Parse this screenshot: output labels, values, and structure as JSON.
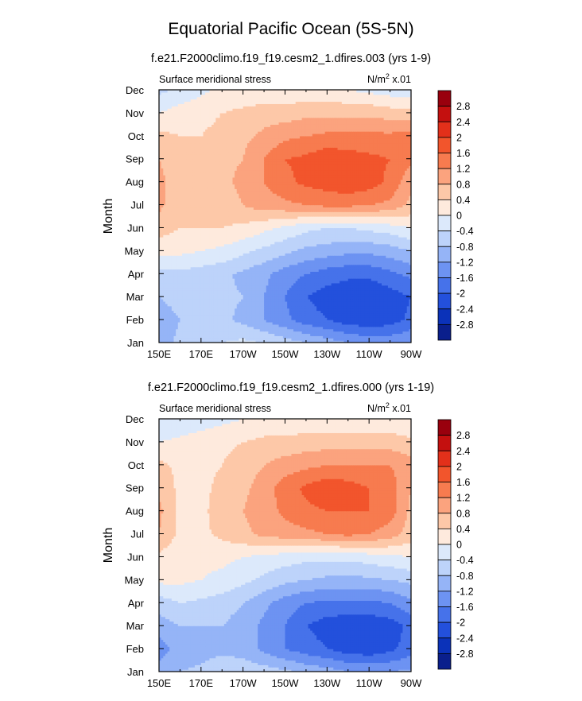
{
  "figure": {
    "title": "Equatorial Pacific Ocean (5S-5N)"
  },
  "colorbar": {
    "labels": [
      "2.8",
      "2.4",
      "2",
      "1.6",
      "1.2",
      "0.8",
      "0.4",
      "0",
      "-0.4",
      "-0.8",
      "-1.2",
      "-1.6",
      "-2",
      "-2.4",
      "-2.8"
    ],
    "colors": [
      "#99000d",
      "#c4100f",
      "#e3301a",
      "#f2552c",
      "#f77b4f",
      "#fba37e",
      "#fdc8a8",
      "#feeadd",
      "#dce9fb",
      "#bdd3fa",
      "#95b4f7",
      "#6d93f2",
      "#4672ea",
      "#2350dc",
      "#0b32b9",
      "#0a1f8c"
    ]
  },
  "chart_data": [
    {
      "type": "contour",
      "title": "f.e21.F2000climo.f19_f19.cesm2_1.dfires.003 (yrs 1-9)",
      "left_label": "Surface meridional stress",
      "right_label_prefix": "N/m",
      "right_label_sup": "2",
      "right_label_suffix": " x.01",
      "ylabel": "Month",
      "x_ticks": [
        "150E",
        "170E",
        "170W",
        "150W",
        "130W",
        "110W",
        "90W"
      ],
      "y_ticks": [
        "Jan",
        "Feb",
        "Mar",
        "Apr",
        "May",
        "Jun",
        "Jul",
        "Aug",
        "Sep",
        "Oct",
        "Nov",
        "Dec"
      ],
      "xlim": [
        150,
        270
      ],
      "ylim": [
        1,
        12
      ],
      "levels": [
        -2.8,
        -2.4,
        -2.0,
        -1.6,
        -1.2,
        -0.8,
        -0.4,
        0.0,
        0.4,
        0.8,
        1.2,
        1.6,
        2.0,
        2.4,
        2.8
      ],
      "x": [
        150,
        160,
        170,
        180,
        190,
        200,
        210,
        220,
        230,
        240,
        250,
        260,
        270
      ],
      "z": [
        [
          -1.0,
          -0.7,
          -0.6,
          -0.4,
          -0.3,
          -0.4,
          -0.6,
          -0.8,
          -1.0,
          -1.2,
          -1.3,
          -1.3,
          -1.2
        ],
        [
          -1.1,
          -0.8,
          -0.7,
          -0.7,
          -0.9,
          -1.2,
          -1.5,
          -1.8,
          -2.0,
          -2.2,
          -2.3,
          -2.2,
          -1.9
        ],
        [
          -0.8,
          -0.6,
          -0.7,
          -0.7,
          -0.8,
          -1.2,
          -1.6,
          -2.0,
          -2.2,
          -2.3,
          -2.4,
          -2.2,
          -2.0
        ],
        [
          -0.5,
          -0.5,
          -0.6,
          -0.7,
          -0.9,
          -1.1,
          -1.4,
          -1.6,
          -1.8,
          -1.9,
          -1.9,
          -1.7,
          -1.5
        ],
        [
          0.1,
          0.1,
          0.0,
          -0.1,
          -0.3,
          -0.5,
          -0.7,
          -0.9,
          -1.0,
          -1.1,
          -1.1,
          -1.0,
          -0.8
        ],
        [
          0.6,
          0.4,
          0.4,
          0.4,
          0.3,
          0.1,
          -0.1,
          -0.3,
          -0.4,
          -0.4,
          -0.3,
          -0.2,
          0.0
        ],
        [
          0.9,
          0.5,
          0.5,
          0.6,
          0.8,
          1.0,
          1.1,
          1.2,
          1.3,
          1.3,
          1.2,
          1.1,
          0.7
        ],
        [
          0.9,
          0.6,
          0.6,
          0.7,
          0.9,
          1.2,
          1.5,
          1.7,
          1.8,
          1.9,
          1.8,
          1.5,
          0.9
        ],
        [
          0.8,
          0.6,
          0.6,
          0.7,
          0.8,
          1.2,
          1.6,
          1.7,
          1.9,
          1.8,
          1.7,
          1.6,
          1.3
        ],
        [
          0.5,
          0.4,
          0.4,
          0.5,
          0.7,
          0.9,
          1.1,
          1.2,
          1.3,
          1.3,
          1.3,
          1.3,
          1.4
        ],
        [
          0.0,
          0.2,
          0.3,
          0.4,
          0.5,
          0.6,
          0.6,
          0.7,
          0.7,
          0.7,
          0.7,
          0.6,
          0.6
        ],
        [
          -0.5,
          -0.3,
          -0.1,
          0.1,
          0.1,
          0.1,
          0.1,
          0.1,
          0.1,
          0.0,
          -0.1,
          -0.2,
          -0.3
        ]
      ]
    },
    {
      "type": "contour",
      "title": "f.e21.F2000climo.f19_f19.cesm2_1.dfires.000 (yrs 1-19)",
      "left_label": "Surface meridional stress",
      "right_label_prefix": "N/m",
      "right_label_sup": "2",
      "right_label_suffix": " x.01",
      "ylabel": "Month",
      "x_ticks": [
        "150E",
        "170E",
        "170W",
        "150W",
        "130W",
        "110W",
        "90W"
      ],
      "y_ticks": [
        "Jan",
        "Feb",
        "Mar",
        "Apr",
        "May",
        "Jun",
        "Jul",
        "Aug",
        "Sep",
        "Oct",
        "Nov",
        "Dec"
      ],
      "xlim": [
        150,
        270
      ],
      "ylim": [
        1,
        12
      ],
      "levels": [
        -2.8,
        -2.4,
        -2.0,
        -1.6,
        -1.2,
        -0.8,
        -0.4,
        0.0,
        0.4,
        0.8,
        1.2,
        1.6,
        2.0,
        2.4,
        2.8
      ],
      "x": [
        150,
        160,
        170,
        180,
        190,
        200,
        210,
        220,
        230,
        240,
        250,
        260,
        270
      ],
      "z": [
        [
          -1.0,
          -0.8,
          -0.7,
          -0.5,
          -0.5,
          -0.6,
          -0.7,
          -0.9,
          -1.0,
          -1.2,
          -1.2,
          -1.2,
          -1.1
        ],
        [
          -1.4,
          -1.0,
          -1.0,
          -0.9,
          -1.0,
          -1.3,
          -1.6,
          -1.8,
          -2.0,
          -2.2,
          -2.3,
          -2.1,
          -1.8
        ],
        [
          -1.0,
          -0.8,
          -0.8,
          -0.8,
          -1.0,
          -1.3,
          -1.6,
          -2.0,
          -2.2,
          -2.3,
          -2.3,
          -2.2,
          -1.9
        ],
        [
          -0.6,
          -0.4,
          -0.5,
          -0.6,
          -0.8,
          -1.1,
          -1.4,
          -1.6,
          -1.7,
          -1.7,
          -1.7,
          -1.6,
          -1.3
        ],
        [
          0.1,
          0.1,
          0.0,
          -0.1,
          -0.3,
          -0.5,
          -0.7,
          -0.8,
          -0.9,
          -0.9,
          -0.9,
          -0.8,
          -0.7
        ],
        [
          0.3,
          0.1,
          0.1,
          0.1,
          0.0,
          -0.1,
          -0.2,
          -0.3,
          -0.3,
          -0.3,
          -0.2,
          -0.1,
          0.0
        ],
        [
          0.8,
          0.3,
          0.3,
          0.5,
          0.7,
          0.9,
          1.0,
          1.1,
          1.2,
          1.3,
          1.2,
          1.0,
          0.6
        ],
        [
          0.9,
          0.3,
          0.3,
          0.6,
          0.8,
          1.0,
          1.3,
          1.5,
          1.6,
          1.6,
          1.6,
          1.4,
          0.7
        ],
        [
          0.7,
          0.3,
          0.3,
          0.5,
          0.7,
          1.0,
          1.4,
          1.7,
          1.9,
          1.8,
          1.6,
          1.4,
          0.8
        ],
        [
          0.5,
          0.3,
          0.3,
          0.4,
          0.6,
          0.8,
          1.0,
          1.1,
          1.2,
          1.2,
          1.2,
          1.2,
          1.0
        ],
        [
          0.0,
          0.1,
          0.2,
          0.3,
          0.4,
          0.5,
          0.5,
          0.6,
          0.6,
          0.6,
          0.6,
          0.6,
          0.5
        ],
        [
          -0.4,
          -0.3,
          -0.2,
          -0.1,
          0.0,
          0.1,
          0.1,
          0.1,
          0.1,
          0.1,
          0.1,
          0.1,
          0.0
        ]
      ]
    }
  ]
}
